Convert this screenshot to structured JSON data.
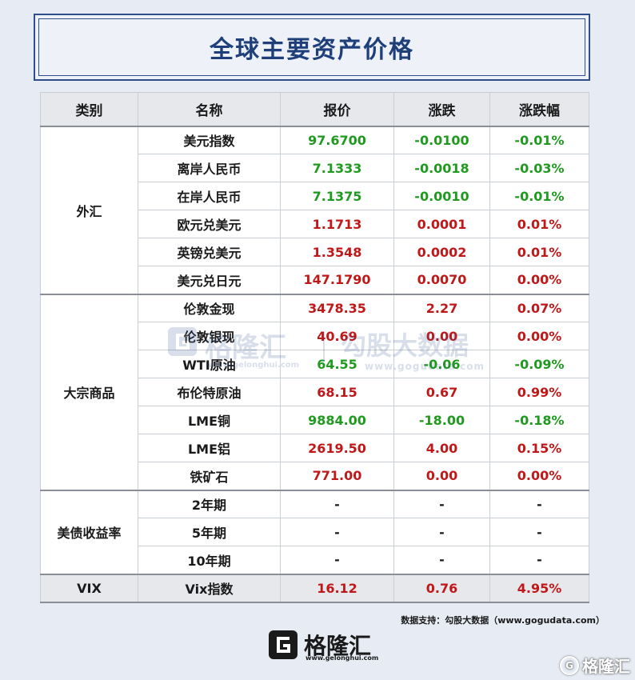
{
  "title": "全球主要资产价格",
  "columns": [
    "类别",
    "名称",
    "报价",
    "涨跌",
    "涨跌幅"
  ],
  "groups": [
    {
      "category": "外汇",
      "rows": [
        {
          "name": "美元指数",
          "price": "97.6700",
          "change": "-0.0100",
          "pct": "-0.01%",
          "trend": "down"
        },
        {
          "name": "离岸人民币",
          "price": "7.1333",
          "change": "-0.0018",
          "pct": "-0.03%",
          "trend": "down"
        },
        {
          "name": "在岸人民币",
          "price": "7.1375",
          "change": "-0.0010",
          "pct": "-0.01%",
          "trend": "down"
        },
        {
          "name": "欧元兑美元",
          "price": "1.1713",
          "change": "0.0001",
          "pct": "0.01%",
          "trend": "up"
        },
        {
          "name": "英镑兑美元",
          "price": "1.3548",
          "change": "0.0002",
          "pct": "0.01%",
          "trend": "up"
        },
        {
          "name": "美元兑日元",
          "price": "147.1790",
          "change": "0.0070",
          "pct": "0.00%",
          "trend": "up"
        }
      ]
    },
    {
      "category": "大宗商品",
      "rows": [
        {
          "name": "伦敦金现",
          "price": "3478.35",
          "change": "2.27",
          "pct": "0.07%",
          "trend": "up"
        },
        {
          "name": "伦敦银现",
          "price": "40.69",
          "change": "0.00",
          "pct": "0.00%",
          "trend": "up"
        },
        {
          "name": "WTI原油",
          "price": "64.55",
          "change": "-0.06",
          "pct": "-0.09%",
          "trend": "down"
        },
        {
          "name": "布伦特原油",
          "price": "68.15",
          "change": "0.67",
          "pct": "0.99%",
          "trend": "up"
        },
        {
          "name": "LME铜",
          "price": "9884.00",
          "change": "-18.00",
          "pct": "-0.18%",
          "trend": "down"
        },
        {
          "name": "LME铝",
          "price": "2619.50",
          "change": "4.00",
          "pct": "0.15%",
          "trend": "up"
        },
        {
          "name": "铁矿石",
          "price": "771.00",
          "change": "0.00",
          "pct": "0.00%",
          "trend": "up"
        }
      ]
    },
    {
      "category": "美债收益率",
      "rows": [
        {
          "name": "2年期",
          "price": "-",
          "change": "-",
          "pct": "-",
          "trend": "none"
        },
        {
          "name": "5年期",
          "price": "-",
          "change": "-",
          "pct": "-",
          "trend": "none"
        },
        {
          "name": "10年期",
          "price": "-",
          "change": "-",
          "pct": "-",
          "trend": "none"
        }
      ]
    },
    {
      "category": "VIX",
      "rows": [
        {
          "name": "Vix指数",
          "price": "16.12",
          "change": "0.76",
          "pct": "4.95%",
          "trend": "up"
        }
      ]
    }
  ],
  "watermark": {
    "brand": "格隆汇",
    "brand2": "勾股大数据",
    "url": "www.gogudata.com",
    "url_small": "www.gelonghui.com",
    "logo_icon": "gelonghui-logo-icon"
  },
  "source": "数据支持：勾股大数据（www.gogudata.com）",
  "footer": {
    "brand": "格隆汇",
    "url": "www.gelonghui.com",
    "logo_icon": "gelonghui-logo-icon"
  },
  "corner": {
    "brand": "格隆汇",
    "icon": "gelonghui-circle-icon"
  },
  "colors": {
    "up": "#c01818",
    "down": "#1f9a1f",
    "accent": "#1f3f7a"
  }
}
